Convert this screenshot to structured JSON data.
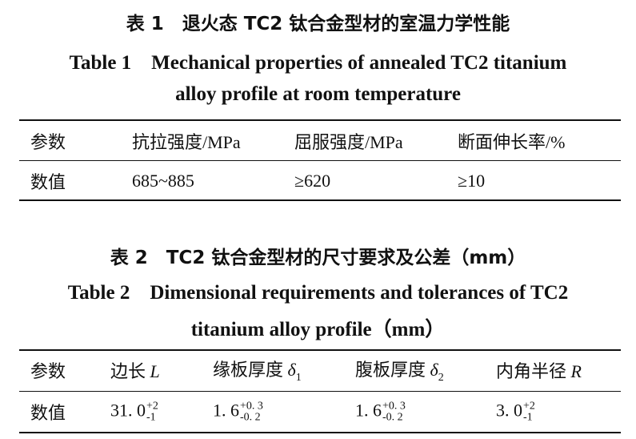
{
  "table1": {
    "caption_cn": "表 1　退火态 TC2 钛合金型材的室温力学性能",
    "caption_en": [
      "Table 1　Mechanical properties of annealed TC2 titanium",
      "alloy profile at room temperature"
    ],
    "header": [
      "参数",
      "抗拉强度/MPa",
      "屈服强度/MPa",
      "断面伸长率/%"
    ],
    "rows": [
      [
        "数值",
        "685~885",
        "≥620",
        "≥10"
      ]
    ]
  },
  "table2": {
    "caption_cn": "表 2　TC2 钛合金型材的尺寸要求及公差（mm）",
    "caption_en": [
      "Table 2　Dimensional requirements and tolerances of TC2",
      "titanium alloy profile（mm）"
    ],
    "header": [
      {
        "text": "参数"
      },
      {
        "text": "边长",
        "symbol": "L"
      },
      {
        "text": "缘板厚度",
        "symbol": "δ",
        "sub": "1"
      },
      {
        "text": "腹板厚度",
        "symbol": "δ",
        "sub": "2"
      },
      {
        "text": "内角半径",
        "symbol": "R"
      }
    ],
    "rows": [
      [
        {
          "text": "数值"
        },
        {
          "base": "31. 0",
          "upper": "+2",
          "lower": "-1"
        },
        {
          "base": "1. 6",
          "upper": "+0. 3",
          "lower": "-0. 2"
        },
        {
          "base": "1. 6",
          "upper": "+0. 3",
          "lower": "-0. 2"
        },
        {
          "base": "3. 0",
          "upper": "+2",
          "lower": "-1"
        }
      ]
    ]
  }
}
